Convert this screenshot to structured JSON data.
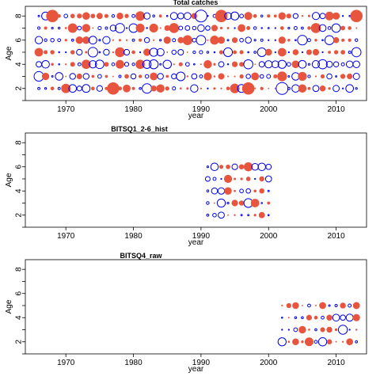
{
  "chart_data": [
    {
      "type": "scatter",
      "title": "Total catches",
      "xlabel": "year",
      "ylabel": "Age",
      "xlim": [
        1964,
        2014.5
      ],
      "ylim": [
        1,
        8.8
      ],
      "xticks": [
        1970,
        1980,
        1990,
        2000,
        2010
      ],
      "yticks": [
        2,
        4,
        6,
        8
      ],
      "year_range": [
        1966,
        2013
      ],
      "ages": [
        2,
        3,
        4,
        5,
        6,
        7,
        8
      ],
      "positive_color": "#e8553e",
      "negative_color": "#0000ee",
      "positive_style": "filled",
      "negative_style": "open",
      "sample_points": [
        {
          "x": 1968,
          "y": 8,
          "size": "large",
          "sign": "positive"
        },
        {
          "x": 1993,
          "y": 8,
          "size": "large",
          "sign": "positive"
        },
        {
          "x": 2013,
          "y": 8,
          "size": "large",
          "sign": "positive"
        },
        {
          "x": 1977,
          "y": 2,
          "size": "large",
          "sign": "positive"
        },
        {
          "x": 1997,
          "y": 2,
          "size": "large",
          "sign": "positive"
        },
        {
          "x": 1990,
          "y": 8,
          "size": "large",
          "sign": "negative"
        },
        {
          "x": 2002,
          "y": 2,
          "size": "large",
          "sign": "negative"
        }
      ]
    },
    {
      "type": "scatter",
      "title": "BITSQ1_2-6_hist",
      "xlabel": "year",
      "ylabel": "Age",
      "xlim": [
        1964,
        2014.5
      ],
      "ylim": [
        1,
        8.8
      ],
      "xticks": [
        1970,
        1980,
        1990,
        2000,
        2010
      ],
      "yticks": [
        2,
        4,
        6,
        8
      ],
      "year_range": [
        1991,
        2000
      ],
      "ages": [
        2,
        3,
        4,
        5,
        6
      ],
      "positive_color": "#e8553e",
      "negative_color": "#0000ee",
      "positive_style": "filled",
      "negative_style": "open"
    },
    {
      "type": "scatter",
      "title": "BITSQ4_raw",
      "xlabel": "year",
      "ylabel": "Age",
      "xlim": [
        1964,
        2014.5
      ],
      "ylim": [
        1,
        8.8
      ],
      "xticks": [
        1970,
        1980,
        1990,
        2000,
        2010
      ],
      "yticks": [
        2,
        4,
        6,
        8
      ],
      "year_range": [
        2002,
        2013
      ],
      "ages": [
        2,
        3,
        4,
        5
      ],
      "positive_color": "#e8553e",
      "negative_color": "#0000ee",
      "positive_style": "filled",
      "negative_style": "open"
    }
  ]
}
